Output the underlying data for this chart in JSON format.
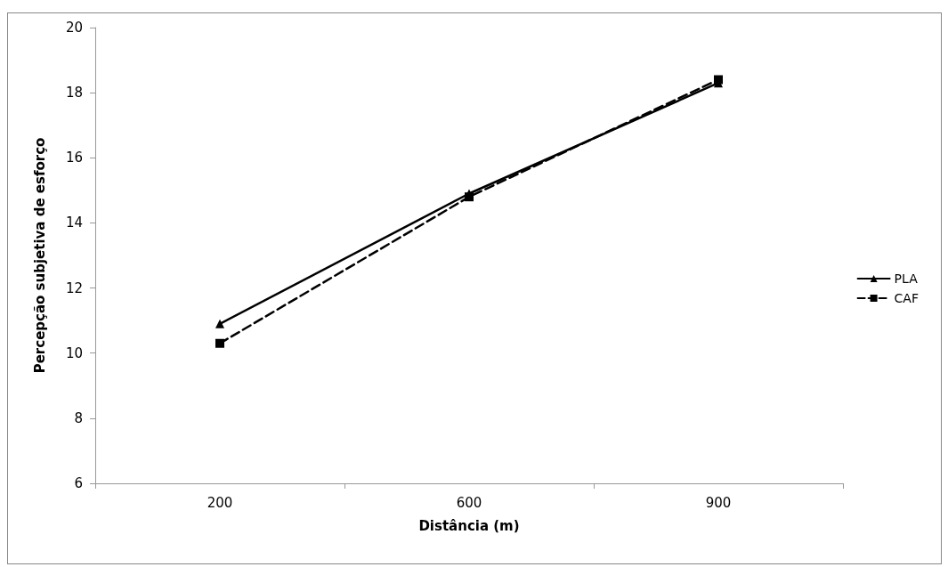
{
  "chart_data": {
    "type": "line",
    "xlabel": "Distância (m)",
    "ylabel": "Percepção subjetiva de esforço",
    "categories": [
      "200",
      "600",
      "900"
    ],
    "series": [
      {
        "name": "PLA",
        "color": "#000000",
        "values": [
          10.9,
          14.9,
          18.3
        ],
        "marker": "triangle",
        "line_style": "solid"
      },
      {
        "name": "CAF",
        "color": "#000000",
        "values": [
          10.3,
          14.8,
          18.4
        ],
        "marker": "square",
        "line_style": "dashed"
      }
    ],
    "ylim": [
      6,
      20
    ],
    "yticks": [
      6,
      8,
      10,
      12,
      14,
      16,
      18,
      20
    ],
    "grid": false,
    "legend": "right"
  }
}
